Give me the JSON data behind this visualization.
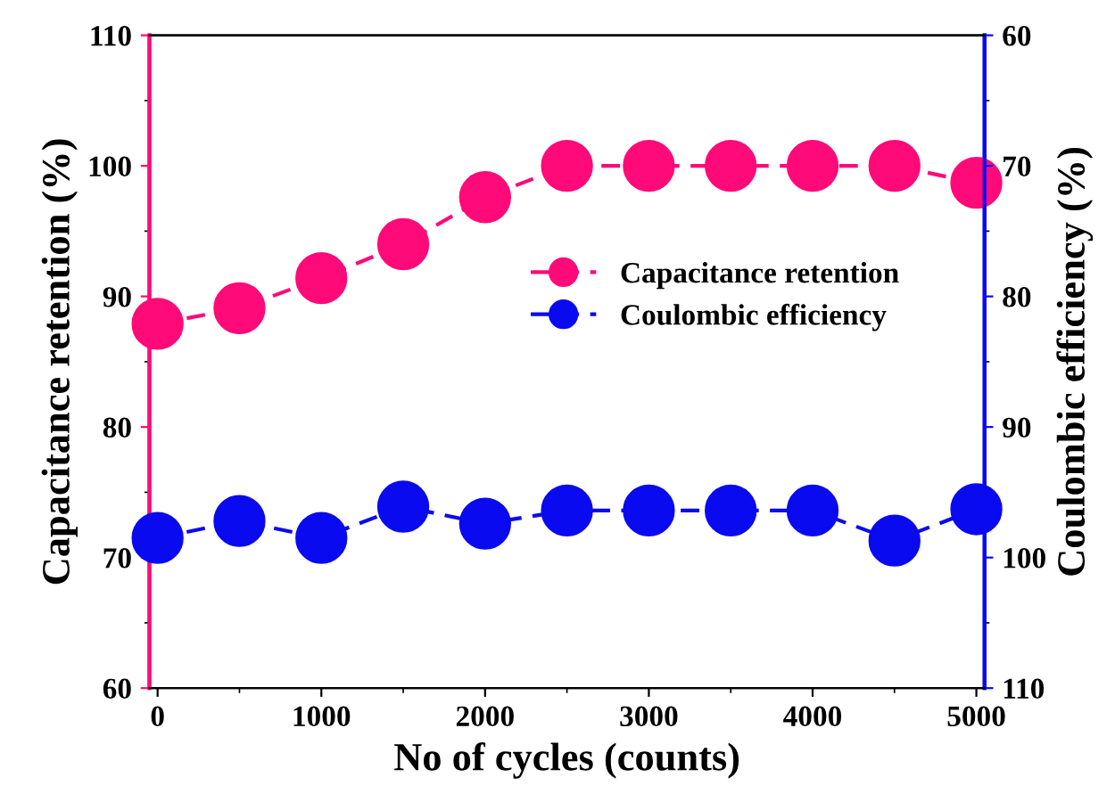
{
  "chart_data": {
    "type": "line",
    "xlabel": "No of cycles (counts)",
    "ylabel": "Capacitance retention (%)",
    "y2label": "Coulombic efficiency (%)",
    "x": [
      0,
      500,
      1000,
      1500,
      2000,
      2500,
      3000,
      3500,
      4000,
      4500,
      5000
    ],
    "series": [
      {
        "name": "Capacitance retention",
        "color": "#ff0a78",
        "values": [
          87.9,
          89.1,
          91.4,
          94.0,
          97.6,
          100.0,
          100.0,
          100.0,
          100.0,
          100.0,
          98.7
        ]
      },
      {
        "name": "Coulombic efficiency",
        "color": "#0a0af0",
        "axis": "y2",
        "values": [
          98.5,
          97.2,
          98.5,
          96.1,
          97.4,
          96.4,
          96.4,
          96.4,
          96.4,
          98.7,
          96.3
        ]
      }
    ],
    "xlim": [
      -50,
      5050
    ],
    "xticks": [
      0,
      1000,
      2000,
      3000,
      4000,
      5000
    ],
    "ylim": [
      60,
      110
    ],
    "yticks": [
      60,
      70,
      80,
      90,
      100,
      110
    ],
    "y2lim": [
      110,
      60
    ],
    "y2ticks": [
      60,
      70,
      80,
      90,
      100,
      110
    ],
    "legend": "right",
    "marker": "circle",
    "line_style": "dashed",
    "grid": false
  }
}
